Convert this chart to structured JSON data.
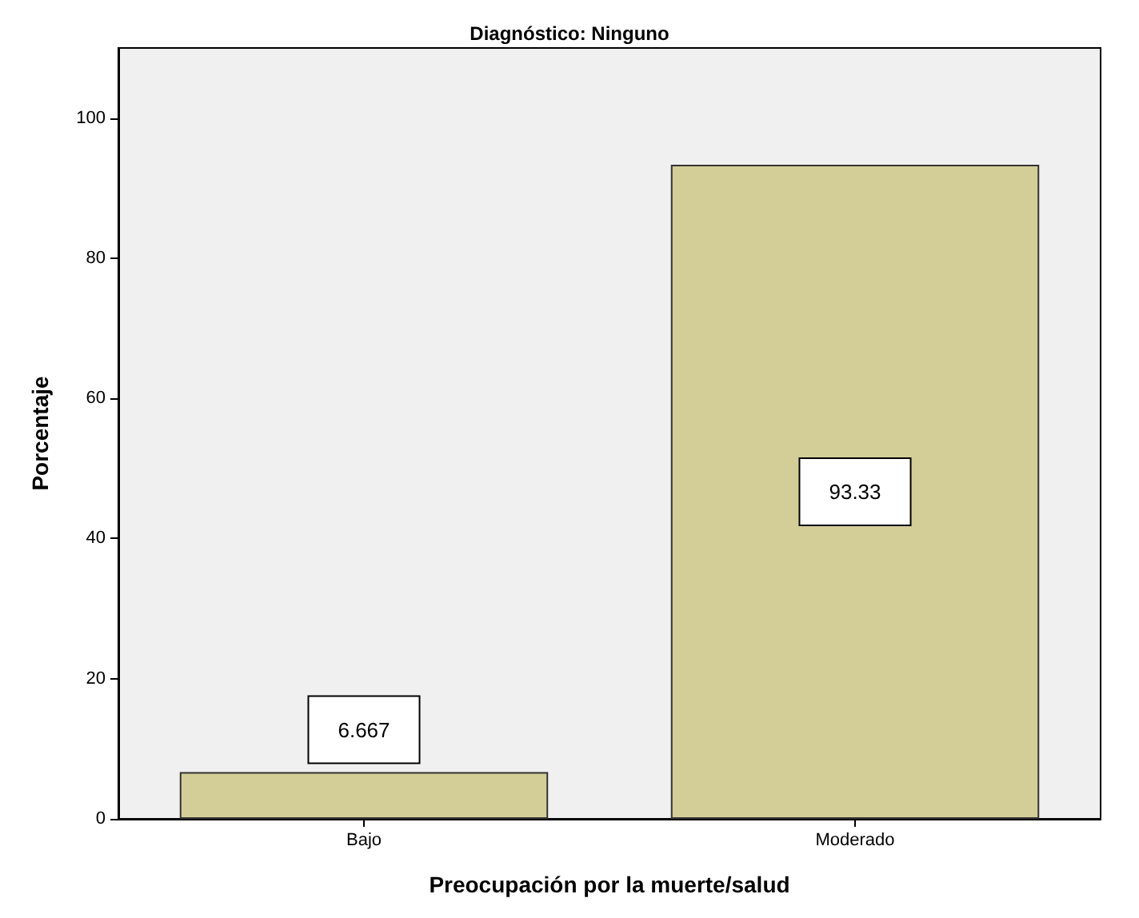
{
  "chart_data": {
    "type": "bar",
    "title": "Diagnóstico: Ninguno",
    "xlabel": "Preocupación por la muerte/salud",
    "ylabel": "Porcentaje",
    "categories": [
      "Bajo",
      "Moderado"
    ],
    "values": [
      6.667,
      93.33
    ],
    "color": "#d3ce97",
    "ylim": [
      0,
      110
    ],
    "yticks": [
      0,
      20,
      40,
      60,
      80,
      100
    ],
    "grid": false,
    "data_labels": true
  }
}
